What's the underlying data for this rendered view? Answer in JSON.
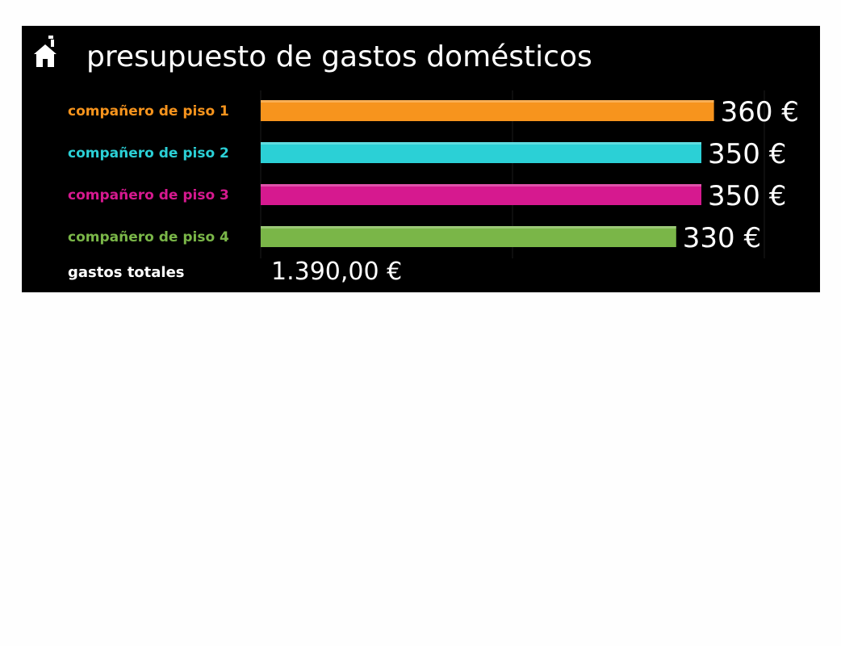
{
  "title": "presupuesto de gastos domésticos",
  "icon": "home-icon",
  "colors": {
    "background": "#000000",
    "text": "#ffffff",
    "series": [
      "#f7941d",
      "#2bd0d6",
      "#d6198f",
      "#7ab648"
    ]
  },
  "chart_data": {
    "type": "bar",
    "orientation": "horizontal",
    "categories": [
      "compañero de piso 1",
      "compañero de piso 2",
      "compañero de piso 3",
      "compañero de piso 4"
    ],
    "values": [
      360,
      350,
      350,
      330
    ],
    "value_labels": [
      "360 €",
      "350 €",
      "350 €",
      "330 €"
    ],
    "xlim": [
      0,
      400
    ],
    "grid": true
  },
  "total": {
    "label": "gastos totales",
    "value": "1.390,00 €"
  }
}
